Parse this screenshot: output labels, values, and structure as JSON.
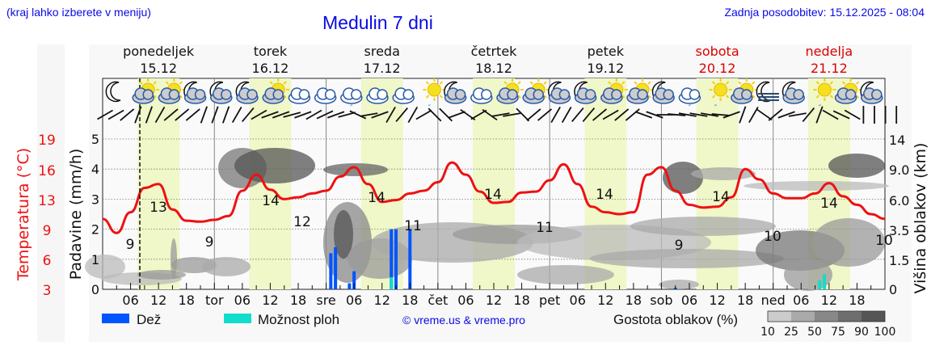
{
  "header": {
    "menu_hint": "(kraj lahko izberete v meniju)",
    "title": "Medulin 7 dni",
    "last_update": "Zadnja posodobitev: 15.12.2025 - 08:04"
  },
  "days": [
    {
      "name": "ponedeljek",
      "date": "15.12",
      "weekend": false
    },
    {
      "name": "torek",
      "date": "16.12",
      "weekend": false
    },
    {
      "name": "sreda",
      "date": "17.12",
      "weekend": false
    },
    {
      "name": "četrtek",
      "date": "18.12",
      "weekend": false
    },
    {
      "name": "petek",
      "date": "19.12",
      "weekend": false
    },
    {
      "name": "sobota",
      "date": "20.12",
      "weekend": true
    },
    {
      "name": "nedelja",
      "date": "21.12",
      "weekend": true
    }
  ],
  "x_tick_labels": [
    "06",
    "12",
    "18",
    "tor",
    "06",
    "12",
    "18",
    "sre",
    "06",
    "12",
    "18",
    "čet",
    "06",
    "12",
    "18",
    "pet",
    "06",
    "12",
    "18",
    "sob",
    "06",
    "12",
    "18",
    "ned",
    "06",
    "12",
    "18"
  ],
  "axes": {
    "temp_label": "Temperatura (°C)",
    "temp_ticks": [
      "19",
      "16",
      "13",
      "9",
      "6",
      "3"
    ],
    "precip_label": "Padavine (mm/h)",
    "precip_ticks": [
      "5",
      "4",
      "3",
      "2",
      "1",
      "0"
    ],
    "cloud_label": "Višina oblakov (km)",
    "cloud_ticks": [
      "14",
      "9.0",
      "6.0",
      "3.5",
      "1.5",
      "0"
    ]
  },
  "legend": {
    "rain": "Dež",
    "showers": "Možnost ploh",
    "credit": "© vreme.us & vreme.pro",
    "cloud_density": "Gostota oblakov (%)",
    "cloud_density_ticks": [
      "10",
      "25",
      "50",
      "75",
      "90",
      "100"
    ]
  },
  "colors": {
    "title_blue": "#0a0ae6",
    "temp_red": "#ee1111",
    "rain_blue": "#0055ff",
    "shower_cyan": "#11ddcc",
    "daylight": "#f0f7c8",
    "weekend_red": "#dd0000"
  },
  "chart_data": {
    "type": "line",
    "title": "Medulin 7 dni",
    "xlabel": "",
    "ylabel": "Temperatura (°C) / Padavine (mm/h)",
    "ylabel_right": "Višina oblakov (km)",
    "temperature_extremes": [
      {
        "day": "15.12",
        "time": "03",
        "label": "9"
      },
      {
        "day": "15.12",
        "time": "12",
        "label": "13"
      },
      {
        "day": "15.12",
        "time": "21",
        "label": "9"
      },
      {
        "day": "16.12",
        "time": "12",
        "label": "14"
      },
      {
        "day": "16.12",
        "time": "18",
        "label": "12"
      },
      {
        "day": "17.12",
        "time": "12",
        "label": "14"
      },
      {
        "day": "17.12",
        "time": "20",
        "label": "11"
      },
      {
        "day": "18.12",
        "time": "12",
        "label": "14"
      },
      {
        "day": "18.12",
        "time": "21",
        "label": "11"
      },
      {
        "day": "19.12",
        "time": "12",
        "label": "14"
      },
      {
        "day": "20.12",
        "time": "03",
        "label": "9"
      },
      {
        "day": "20.12",
        "time": "12",
        "label": "14"
      },
      {
        "day": "20.12",
        "time": "21",
        "label": "10"
      },
      {
        "day": "21.12",
        "time": "12",
        "label": "14"
      },
      {
        "day": "21.12",
        "time": "24",
        "label": "10"
      }
    ],
    "temp_series_hours": [
      0,
      3,
      6,
      9,
      12,
      15,
      18,
      21,
      24,
      27,
      30,
      33,
      36,
      39,
      42,
      45,
      48,
      51,
      54,
      57,
      60,
      63,
      66,
      69,
      72,
      75,
      78,
      81,
      84,
      87,
      90,
      93,
      96,
      99,
      102,
      105,
      108,
      111,
      114,
      117,
      120,
      123,
      126,
      129,
      132,
      135,
      138,
      141,
      144,
      147,
      150,
      153,
      156,
      159,
      162,
      165,
      168
    ],
    "temp_series": [
      10.5,
      9,
      11.2,
      13.8,
      14.2,
      11.5,
      10.3,
      10.2,
      10.4,
      10.8,
      13.5,
      15.2,
      13.6,
      12.6,
      12.8,
      13.2,
      13.5,
      15,
      16,
      14.2,
      12.3,
      12.5,
      13.2,
      13.5,
      14.4,
      16.5,
      15.2,
      13.4,
      12.2,
      12.3,
      13.3,
      13.4,
      14.6,
      16.3,
      14.2,
      11.8,
      11.2,
      11.0,
      11.2,
      15.2,
      16.0,
      13.5,
      12.0,
      11.7,
      11.8,
      12.8,
      15.8,
      14.7,
      13.2,
      12.7,
      12.7,
      13.2,
      14.3,
      12.9,
      12.0,
      11.0,
      10.5
    ],
    "precip_bars": [
      {
        "day": "17.12",
        "hour": 1,
        "rain_mm": 1.2
      },
      {
        "day": "17.12",
        "hour": 2,
        "rain_mm": 1.4
      },
      {
        "day": "17.12",
        "hour": 5,
        "rain_mm": 0.2
      },
      {
        "day": "17.12",
        "hour": 6,
        "rain_mm": 0.6
      },
      {
        "day": "17.12",
        "hour": 14,
        "rain_mm": 2.0,
        "shower_mm": 0.4
      },
      {
        "day": "17.12",
        "hour": 15,
        "rain_mm": 2.0
      },
      {
        "day": "17.12",
        "hour": 18,
        "rain_mm": 2.0
      },
      {
        "day": "20.12",
        "hour": 3,
        "rain_mm": 0.05
      },
      {
        "day": "21.12",
        "hour": 10,
        "shower_mm": 0.3
      },
      {
        "day": "21.12",
        "hour": 11,
        "shower_mm": 0.5
      }
    ],
    "ylim_precip": [
      0,
      5
    ],
    "ylim_temp": [
      3,
      19
    ],
    "cloud_height_ticks_km": [
      0,
      1.5,
      3.5,
      6.0,
      9.0,
      14
    ],
    "legend": [
      "Dež",
      "Možnost ploh",
      "Gostota oblakov (%)"
    ],
    "grid": true
  }
}
